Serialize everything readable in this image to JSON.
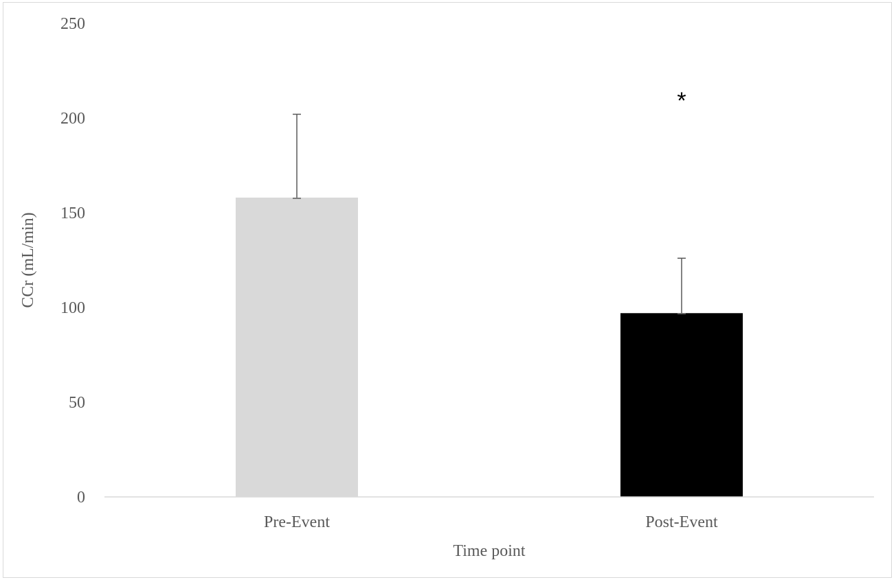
{
  "chart_data": {
    "type": "bar",
    "title": "",
    "xlabel": "Time point",
    "ylabel": "CCr (mL/min)",
    "ylim": [
      0,
      250
    ],
    "yticks": [
      0,
      50,
      100,
      150,
      200,
      250
    ],
    "grid": false,
    "legend": "none",
    "categories": [
      "Pre-Event",
      "Post-Event"
    ],
    "values": [
      158,
      97
    ],
    "error_plus": [
      44,
      29
    ],
    "colors": [
      "#d9d9d9",
      "#000000"
    ],
    "annotations": [
      {
        "category": "Post-Event",
        "text": "*",
        "y": 213
      }
    ]
  }
}
